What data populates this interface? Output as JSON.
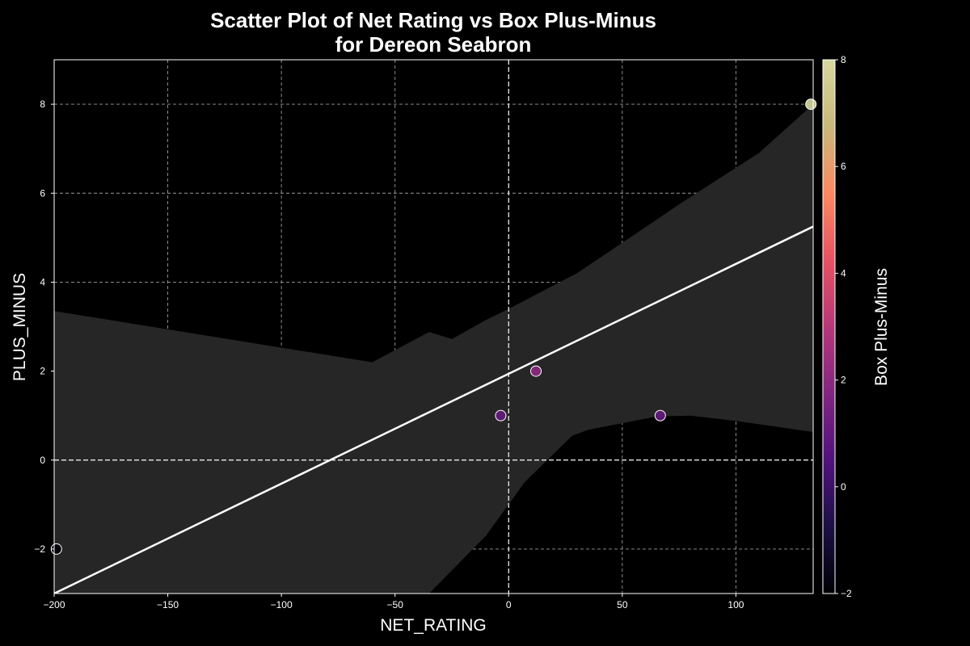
{
  "chart_data": {
    "type": "scatter",
    "title": "Scatter Plot of Net Rating vs Box Plus-Minus",
    "subtitle": "for Dereon Seabron",
    "xlabel": "NET_RATING",
    "ylabel": "PLUS_MINUS",
    "xlim": [
      -200,
      134
    ],
    "ylim": [
      -3,
      9
    ],
    "grid": true,
    "x_ticks": [
      -200,
      -150,
      -100,
      -50,
      0,
      50,
      100
    ],
    "x_tick_labels": [
      "−200",
      "−150",
      "−100",
      "−50",
      "0",
      "50",
      "100"
    ],
    "y_ticks": [
      -2,
      0,
      2,
      4,
      6,
      8
    ],
    "y_tick_labels": [
      "−2",
      "0",
      "2",
      "4",
      "6",
      "8"
    ],
    "reference_lines": {
      "x": 0,
      "y": 0
    },
    "points": [
      {
        "x": -199,
        "y": -2
      },
      {
        "x": -3.5,
        "y": 1
      },
      {
        "x": 12,
        "y": 2
      },
      {
        "x": 66.7,
        "y": 1
      },
      {
        "x": 133,
        "y": 8
      }
    ],
    "regression": {
      "line": {
        "x": [
          -200,
          134
        ],
        "y": [
          -3.0,
          5.25
        ]
      },
      "ci_upper": [
        {
          "x": -200,
          "y": 3.35
        },
        {
          "x": -60,
          "y": 2.2
        },
        {
          "x": -35,
          "y": 2.88
        },
        {
          "x": -25,
          "y": 2.72
        },
        {
          "x": -10,
          "y": 3.15
        },
        {
          "x": 0,
          "y": 3.4
        },
        {
          "x": 30,
          "y": 4.2
        },
        {
          "x": 65,
          "y": 5.4
        },
        {
          "x": 75,
          "y": 5.75
        },
        {
          "x": 110,
          "y": 6.9
        },
        {
          "x": 134,
          "y": 8.0
        }
      ],
      "ci_lower": [
        {
          "x": -200,
          "y": -3.0
        },
        {
          "x": -35,
          "y": -3.0
        },
        {
          "x": -10,
          "y": -1.7
        },
        {
          "x": 7,
          "y": -0.5
        },
        {
          "x": 28,
          "y": 0.55
        },
        {
          "x": 35,
          "y": 0.68
        },
        {
          "x": 65,
          "y": 0.98
        },
        {
          "x": 80,
          "y": 1.0
        },
        {
          "x": 100,
          "y": 0.88
        },
        {
          "x": 134,
          "y": 0.63
        }
      ]
    },
    "colorbar": {
      "label": "Box Plus-Minus",
      "range": [
        -2,
        8
      ],
      "ticks": [
        -2,
        0,
        2,
        4,
        6,
        8
      ],
      "tick_labels": [
        "−2",
        "0",
        "2",
        "4",
        "6",
        "8"
      ],
      "colormap": "magma",
      "stops": [
        "#000004",
        "#1c1044",
        "#51127c",
        "#822681",
        "#b73779",
        "#e75263",
        "#fc8961",
        "#c8b87a",
        "#d8d8a0"
      ]
    },
    "colors": {
      "background": "#000000",
      "ci_band": "#262626",
      "regression_line": "#ffffff",
      "point_stroke": "#ffffff"
    }
  }
}
